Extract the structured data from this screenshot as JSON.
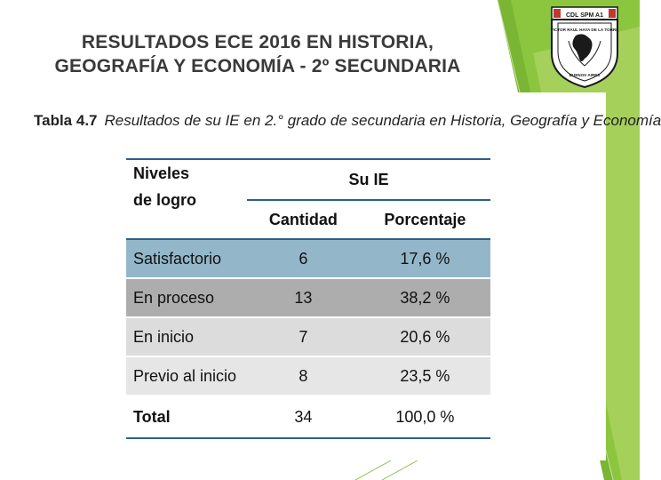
{
  "slide": {
    "title_line1": "RESULTADOS ECE 2016 EN HISTORIA,",
    "title_line2": "GEOGRAFÍA Y ECONOMÍA - 2º SECUNDARIA"
  },
  "logo": {
    "top_text": "CDL SPM A1",
    "arc_text": "VICTOR RAUL HAYA DE LA TORRE",
    "bottom_text": "BUENOS AIRES"
  },
  "table": {
    "caption_number": "Tabla 4.7",
    "caption_text": "Resultados de su IE en 2.° grado de secundaria en Historia, Geografía y Economía",
    "header_levels_line1": "Niveles",
    "header_levels_line2": "de logro",
    "header_group": "Su IE",
    "header_count": "Cantidad",
    "header_percent": "Porcentaje",
    "rows": [
      {
        "level": "Satisfactorio",
        "count": "6",
        "percent": "17,6 %"
      },
      {
        "level": "En proceso",
        "count": "13",
        "percent": "38,2 %"
      },
      {
        "level": "En inicio",
        "count": "7",
        "percent": "20,6 %"
      },
      {
        "level": "Previo al inicio",
        "count": "8",
        "percent": "23,5 %"
      }
    ],
    "total": {
      "level": "Total",
      "count": "34",
      "percent": "100,0 %"
    }
  },
  "colors": {
    "accent_green": "#8cc63e",
    "row_satisfactorio": "#93b7c9",
    "row_en_proceso": "#adadad",
    "rule_blue": "#2e5f8a"
  }
}
